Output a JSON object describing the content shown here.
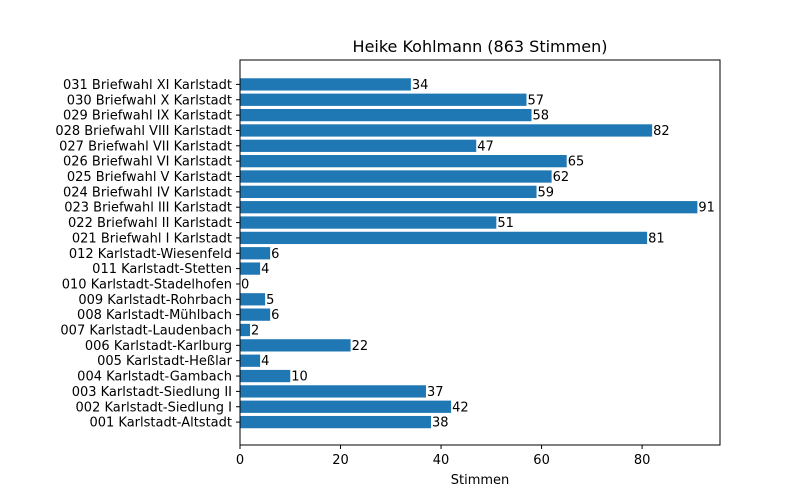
{
  "chart_data": {
    "type": "bar",
    "orientation": "horizontal",
    "title": "Heike Kohlmann (863 Stimmen)",
    "xlabel": "Stimmen",
    "ylabel": "",
    "xlim": [
      0,
      95.5
    ],
    "xticks": [
      0,
      20,
      40,
      60,
      80
    ],
    "grid": false,
    "bar_color": "#1f77b4",
    "categories": [
      "001 Karlstadt-Altstadt",
      "002 Karlstadt-Siedlung I",
      "003 Karlstadt-Siedlung II",
      "004 Karlstadt-Gambach",
      "005 Karlstadt-Heßlar",
      "006 Karlstadt-Karlburg",
      "007 Karlstadt-Laudenbach",
      "008 Karlstadt-Mühlbach",
      "009 Karlstadt-Rohrbach",
      "010 Karlstadt-Stadelhofen",
      "011 Karlstadt-Stetten",
      "012 Karlstadt-Wiesenfeld",
      "021 Briefwahl I Karlstadt",
      "022 Briefwahl II Karlstadt",
      "023 Briefwahl III Karlstadt",
      "024 Briefwahl IV Karlstadt",
      "025 Briefwahl V Karlstadt",
      "026 Briefwahl VI Karlstadt",
      "027 Briefwahl VII Karlstadt",
      "028 Briefwahl VIII Karlstadt",
      "029 Briefwahl IX Karlstadt",
      "030 Briefwahl X Karlstadt",
      "031 Briefwahl XI Karlstadt"
    ],
    "values": [
      38,
      42,
      37,
      10,
      4,
      22,
      2,
      6,
      5,
      0,
      4,
      6,
      81,
      51,
      91,
      59,
      62,
      65,
      47,
      82,
      58,
      57,
      34
    ]
  }
}
